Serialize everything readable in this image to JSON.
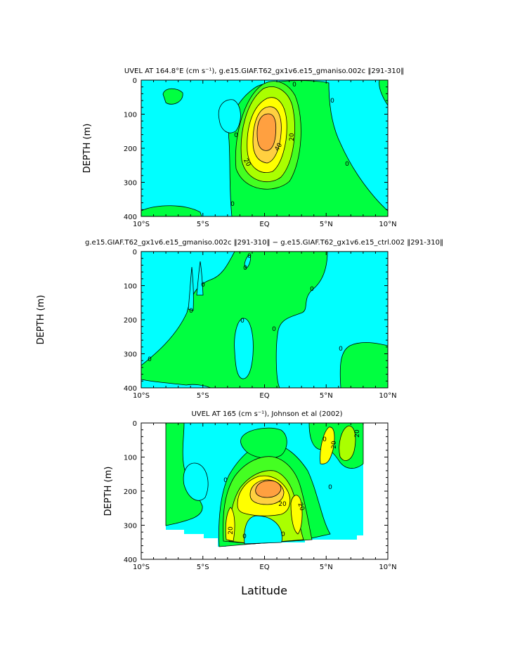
{
  "colors": {
    "cyan": "#00ffff",
    "green": "#00ff40",
    "light_green": "#44ff22",
    "yellow_green": "#aaff00",
    "yellow": "#ffff00",
    "gold": "#ffd040",
    "orange": "#ffa040",
    "line": "#000000",
    "background": "#ffffff"
  },
  "figure": {
    "xlabel": "Latitude"
  },
  "chart_data": [
    {
      "type": "contour",
      "title": "UVEL AT 164.8°E (cm s⁻¹), g.e15.GIAF.T62_gx1v6.e15_gmaniso.002c ‖291-310‖",
      "ylabel": "DEPTH (m)",
      "xlabel": "",
      "x_ticks": [
        "10°S",
        "5°S",
        "EQ",
        "5°N",
        "10°N"
      ],
      "y_ticks": [
        "0",
        "100",
        "200",
        "300",
        "400"
      ],
      "xlim": [
        -10,
        10
      ],
      "ylim": [
        0,
        400
      ],
      "y_reversed": true,
      "contour_labels": [
        "0",
        "0",
        "0",
        "0",
        "0",
        "20",
        "20",
        "40"
      ],
      "features": [
        {
          "kind": "jet_core",
          "lat": 0,
          "depth": 175,
          "max_value": 60
        }
      ]
    },
    {
      "type": "contour",
      "title": "g.e15.GIAF.T62_gx1v6.e15_gmaniso.002c ‖291-310‖ − g.e15.GIAF.T62_gx1v6.e15_ctrl.002 ‖291-310‖",
      "ylabel": "DEPTH (m)",
      "xlabel": "",
      "x_ticks": [
        "10°S",
        "5°S",
        "EQ",
        "5°N",
        "10°N"
      ],
      "y_ticks": [
        "0",
        "100",
        "200",
        "300",
        "400"
      ],
      "xlim": [
        -10,
        10
      ],
      "ylim": [
        0,
        400
      ],
      "y_reversed": true,
      "contour_labels": [
        "0",
        "0",
        "0",
        "0",
        "0",
        "0",
        "0",
        "0",
        "0"
      ]
    },
    {
      "type": "contour",
      "title": "UVEL AT 165 (cm s⁻¹), Johnson et al (2002)",
      "ylabel": "DEPTH (m)",
      "xlabel": "Latitude",
      "x_ticks": [
        "10°S",
        "5°S",
        "EQ",
        "5°N",
        "10°N"
      ],
      "y_ticks": [
        "0",
        "100",
        "200",
        "300",
        "400"
      ],
      "xlim": [
        -10,
        10
      ],
      "ylim": [
        0,
        400
      ],
      "y_reversed": true,
      "data_extent": {
        "lat_min": -8,
        "lat_max": 8
      },
      "contour_labels": [
        "0",
        "0",
        "0",
        "0",
        "0",
        "20",
        "20",
        "20",
        "20",
        "20"
      ],
      "features": [
        {
          "kind": "jet_core",
          "lat": 0,
          "depth": 190,
          "max_value": 60
        }
      ]
    }
  ]
}
